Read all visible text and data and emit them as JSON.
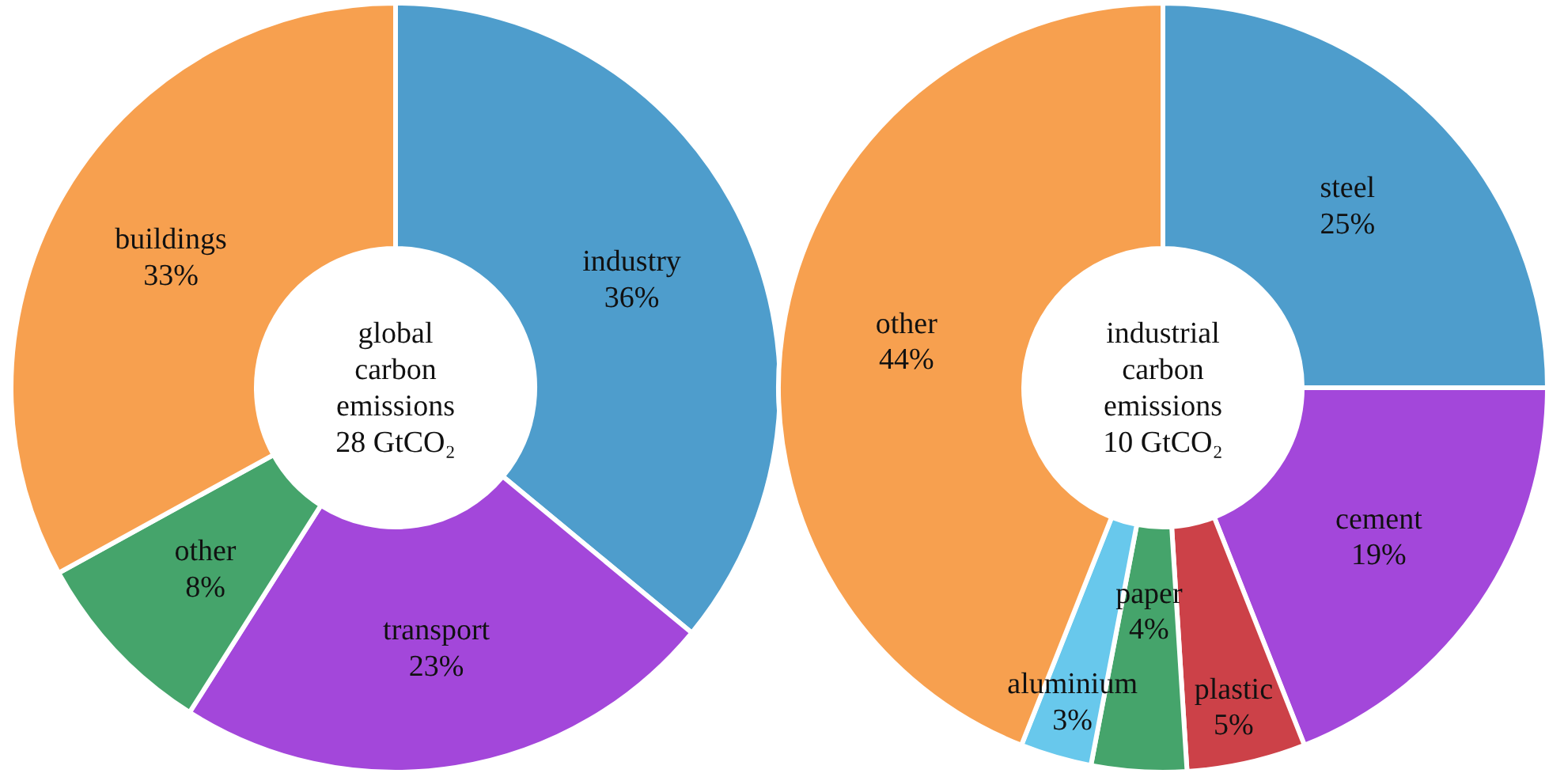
{
  "chart_data": [
    {
      "type": "donut",
      "title": "global carbon emissions 28 GtCO₂",
      "categories": [
        "industry",
        "transport",
        "other",
        "buildings"
      ],
      "values": [
        36,
        23,
        8,
        33
      ],
      "colors": [
        "#4e9dcc",
        "#a347da",
        "#45a46b",
        "#f7a04f"
      ],
      "value_labels": [
        "36%",
        "23%",
        "8%",
        "33%"
      ]
    },
    {
      "type": "donut",
      "title": "industrial carbon emissions 10 GtCO₂",
      "categories": [
        "steel",
        "cement",
        "plastic",
        "paper",
        "aluminium",
        "other"
      ],
      "values": [
        25,
        19,
        5,
        4,
        3,
        44
      ],
      "colors": [
        "#4e9dcc",
        "#a347da",
        "#cc4148",
        "#45a46b",
        "#68c8ec",
        "#f7a04f"
      ],
      "value_labels": [
        "25%",
        "19%",
        "5%",
        "4%",
        "3%",
        "44%"
      ]
    }
  ]
}
